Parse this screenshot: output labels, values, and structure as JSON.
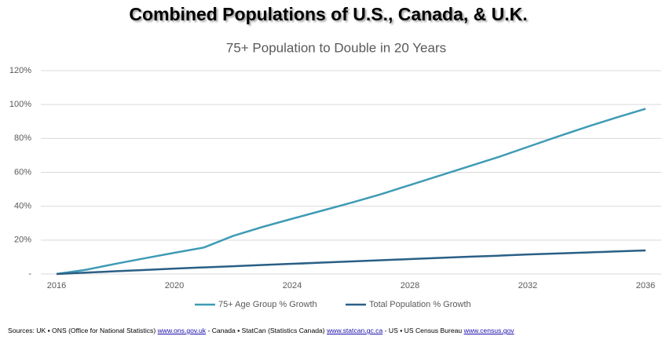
{
  "chart_data": {
    "type": "line",
    "title": "Combined Populations of U.S., Canada, & U.K.",
    "subtitle": "75+ Population to Double in 20 Years",
    "x": [
      2016,
      2017,
      2018,
      2019,
      2020,
      2021,
      2022,
      2023,
      2024,
      2025,
      2026,
      2027,
      2028,
      2029,
      2030,
      2031,
      2032,
      2033,
      2034,
      2035,
      2036
    ],
    "xlim": [
      2016,
      2036
    ],
    "xticks": [
      2016,
      2020,
      2024,
      2028,
      2032,
      2036
    ],
    "ylim": [
      0,
      120
    ],
    "yticks": [
      {
        "value": 0,
        "label": "-"
      },
      {
        "value": 20,
        "label": "20%"
      },
      {
        "value": 40,
        "label": "40%"
      },
      {
        "value": 60,
        "label": "60%"
      },
      {
        "value": 80,
        "label": "80%"
      },
      {
        "value": 100,
        "label": "100%"
      },
      {
        "value": 120,
        "label": "120%"
      }
    ],
    "grid": true,
    "legend": "bottom",
    "series": [
      {
        "name": "75+ Age Group % Growth",
        "color": "#3f9bb5",
        "values": [
          0,
          2.5,
          6,
          9.3,
          12.5,
          15.6,
          22.5,
          27.8,
          32.6,
          37.3,
          42,
          47,
          52.5,
          58,
          63.5,
          69,
          75,
          81,
          86.8,
          92.3,
          97.5
        ]
      },
      {
        "name": "Total Population % Growth",
        "color": "#2a5f86",
        "values": [
          0,
          0.8,
          1.6,
          2.4,
          3.2,
          3.9,
          4.6,
          5.3,
          6,
          6.7,
          7.4,
          8.1,
          8.8,
          9.5,
          10.2,
          10.8,
          11.5,
          12.1,
          12.7,
          13.3,
          13.9
        ]
      }
    ],
    "footnote": [
      {
        "text": "Sources:  UK ▪ ONS (Office for National Statistics)",
        "url": "www.ons.gov.uk"
      },
      {
        "text": "- Canada ▪ StatCan (Statistics Canada)",
        "url": "www.statcan.gc.ca"
      },
      {
        "text": "- US ▪ US Census Bureau",
        "url": "www.census.gov"
      }
    ]
  }
}
